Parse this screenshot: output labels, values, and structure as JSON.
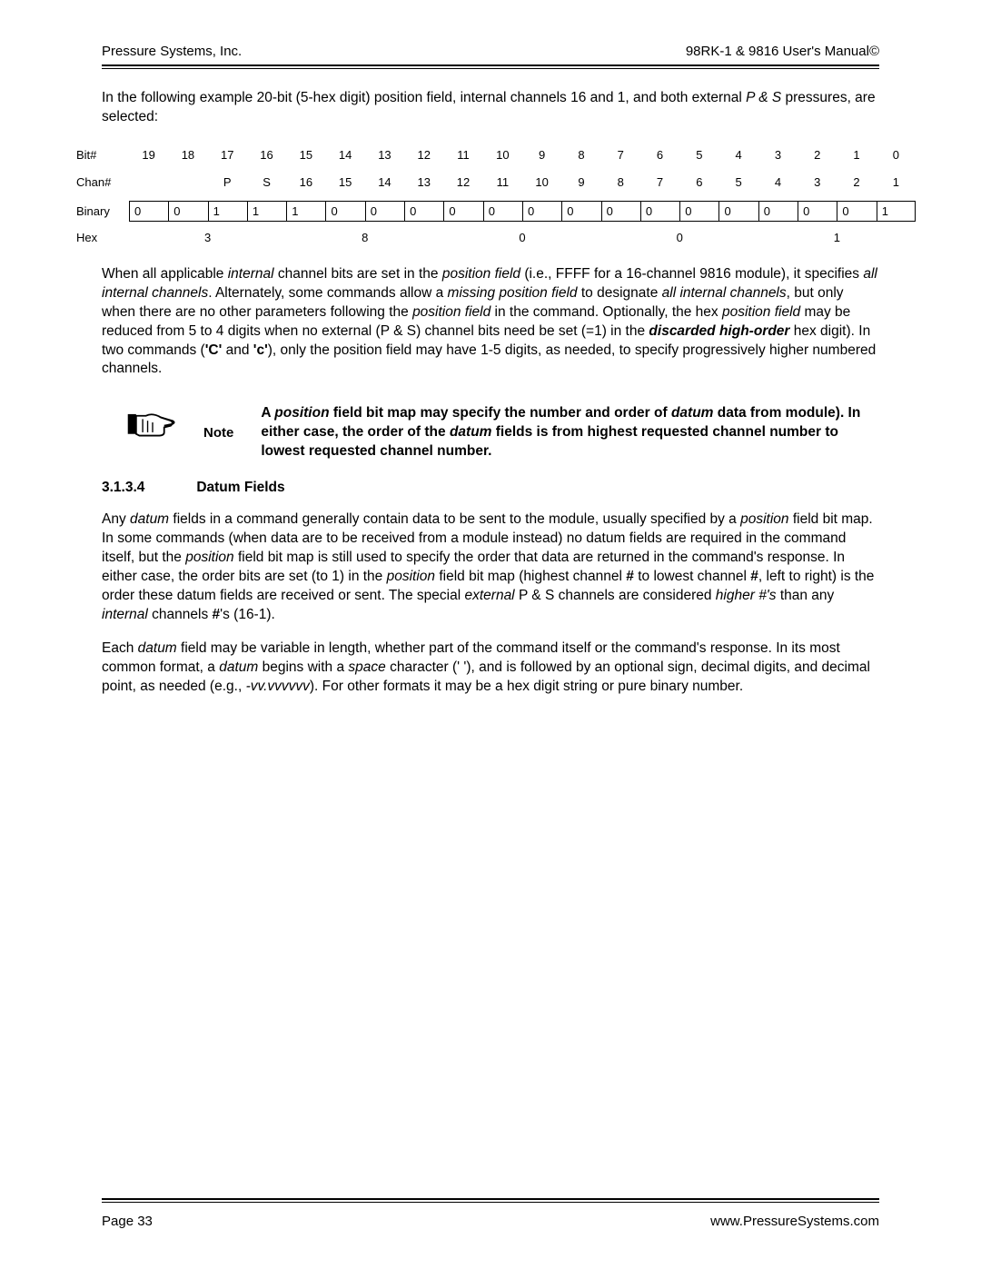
{
  "header": {
    "left": "Pressure Systems, Inc.",
    "right": "98RK-1 & 9816 User's Manual©"
  },
  "intro_1": "In the following example 20-bit (5-hex digit) position field, internal channels 16 and 1, and both external ",
  "intro_italic": "P & S",
  "intro_2": " pressures, are selected:",
  "bit_table": {
    "labels": {
      "bit": "Bit#",
      "chan": "Chan#",
      "binary": "Binary",
      "hex": "Hex"
    },
    "bit_nums": [
      "19",
      "18",
      "17",
      "16",
      "15",
      "14",
      "13",
      "12",
      "11",
      "10",
      "9",
      "8",
      "7",
      "6",
      "5",
      "4",
      "3",
      "2",
      "1",
      "0"
    ],
    "chan_nums": [
      "",
      "",
      "P",
      "S",
      "16",
      "15",
      "14",
      "13",
      "12",
      "11",
      "10",
      "9",
      "8",
      "7",
      "6",
      "5",
      "4",
      "3",
      "2",
      "1"
    ],
    "binary": [
      "0",
      "0",
      "1",
      "1",
      "1",
      "0",
      "0",
      "0",
      "0",
      "0",
      "0",
      "0",
      "0",
      "0",
      "0",
      "0",
      "0",
      "0",
      "0",
      "1"
    ],
    "hex": [
      "3",
      "8",
      "0",
      "0",
      "1"
    ]
  },
  "para1_parts": [
    {
      "t": "When all applicable "
    },
    {
      "t": "internal",
      "i": true
    },
    {
      "t": " channel bits are set in the "
    },
    {
      "t": "position field",
      "i": true
    },
    {
      "t": " (i.e., FFFF for a 16-channel 9816 module), it specifies "
    },
    {
      "t": "all internal channels",
      "i": true
    },
    {
      "t": ". Alternately, some commands allow a "
    },
    {
      "t": "missing position field",
      "i": true
    },
    {
      "t": " to designate "
    },
    {
      "t": "all internal channels",
      "i": true
    },
    {
      "t": ", but only when there are no other parameters following the "
    },
    {
      "t": "position field",
      "i": true
    },
    {
      "t": " in the command.  Optionally, the hex "
    },
    {
      "t": "position field",
      "i": true
    },
    {
      "t": " may be reduced from 5 to 4 digits when no external (P & S) channel bits need be set (=1) in the "
    },
    {
      "t": "discarded high-order",
      "bi": true
    },
    {
      "t": " hex digit).  In two commands ("
    },
    {
      "t": "'C'",
      "b": true
    },
    {
      "t": " and "
    },
    {
      "t": "'c'",
      "b": true
    },
    {
      "t": "), only the position field may have 1-5 digits, as needed, to specify progressively higher numbered channels."
    }
  ],
  "note": {
    "label": "Note",
    "parts": [
      {
        "t": "A "
      },
      {
        "t": "position",
        "bi": true
      },
      {
        "t": " field bit map may specify the number and order of "
      },
      {
        "t": "datum",
        "bi": true
      },
      {
        "t": " data from module).  In either case, the order of the "
      },
      {
        "t": "datum",
        "bi": true
      },
      {
        "t": " fields is from highest requested channel number to lowest requested channel number."
      }
    ]
  },
  "section": {
    "num": "3.1.3.4",
    "title": "Datum Fields"
  },
  "para2_parts": [
    {
      "t": "Any "
    },
    {
      "t": "datum",
      "i": true
    },
    {
      "t": " fields in a command generally contain data to be sent to the module, usually specified by a "
    },
    {
      "t": "position",
      "i": true
    },
    {
      "t": " field bit map.  In some commands (when data are to be received from a module instead) no datum fields are required in the command itself, but the "
    },
    {
      "t": "position",
      "i": true
    },
    {
      "t": " field bit map is still used to specify the order that data are returned in the command's response.  In either case, the order bits are set (to 1) in the "
    },
    {
      "t": "position",
      "i": true
    },
    {
      "t": " field bit map (highest channel "
    },
    {
      "t": "#",
      "b": true
    },
    {
      "t": " to lowest channel "
    },
    {
      "t": "#",
      "b": true
    },
    {
      "t": ", left to right) is the order these datum fields are received or sent. The special "
    },
    {
      "t": "external",
      "i": true
    },
    {
      "t": " P & S channels are considered "
    },
    {
      "t": "higher #'s",
      "i": true
    },
    {
      "t": " than any "
    },
    {
      "t": "internal",
      "i": true
    },
    {
      "t": " channels "
    },
    {
      "t": "#",
      "b": true
    },
    {
      "t": "'s (16-1)."
    }
  ],
  "para3_parts": [
    {
      "t": "Each "
    },
    {
      "t": "datum",
      "i": true
    },
    {
      "t": " field may be variable in length, whether part of the command itself or the command's response.  In its most common format, a "
    },
    {
      "t": "datum",
      "i": true
    },
    {
      "t": " begins with a "
    },
    {
      "t": "space",
      "i": true
    },
    {
      "t": " character (' '), and is followed by an optional sign, decimal digits, and decimal point, as needed (e.g., "
    },
    {
      "t": "-vv.vvvvvv",
      "i": true
    },
    {
      "t": ").  For other formats it may be a hex digit string or pure binary number."
    }
  ],
  "footer": {
    "left": "Page 33",
    "right": "www.PressureSystems.com"
  }
}
